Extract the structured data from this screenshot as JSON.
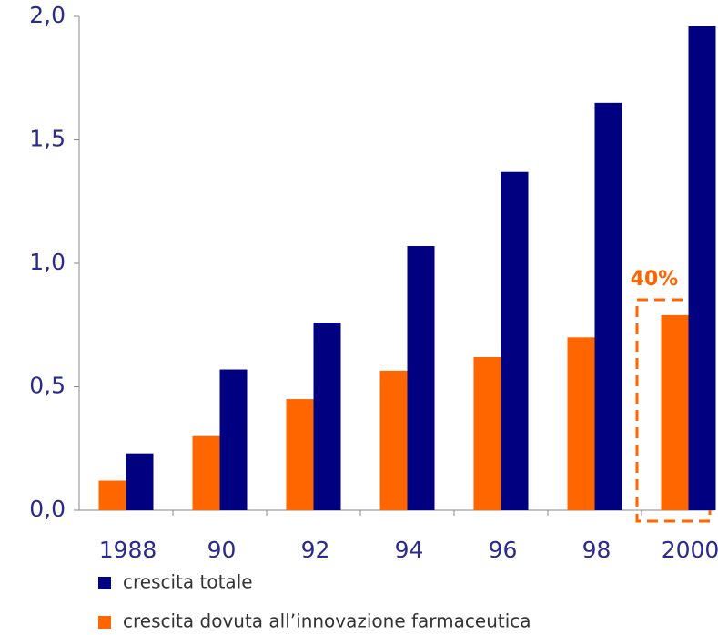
{
  "chart_data": {
    "type": "bar",
    "categories": [
      "1988",
      "90",
      "92",
      "94",
      "96",
      "98",
      "2000"
    ],
    "series": [
      {
        "name": "crescita totale",
        "color": "#000080",
        "values": [
          0.23,
          0.57,
          0.76,
          1.07,
          1.37,
          1.65,
          1.96
        ]
      },
      {
        "name": "crescita dovuta all’innovazione farmaceutica",
        "color": "#ff6600",
        "values": [
          0.12,
          0.3,
          0.45,
          0.565,
          0.62,
          0.7,
          0.79
        ]
      }
    ],
    "ylim": [
      0,
      2
    ],
    "yticks": [
      {
        "value": 0,
        "label": "0,0"
      },
      {
        "value": 0.5,
        "label": "0,5"
      },
      {
        "value": 1,
        "label": "1,0"
      },
      {
        "value": 1.5,
        "label": "1,5"
      },
      {
        "value": 2,
        "label": "2,0"
      }
    ],
    "annotation": "40%"
  }
}
